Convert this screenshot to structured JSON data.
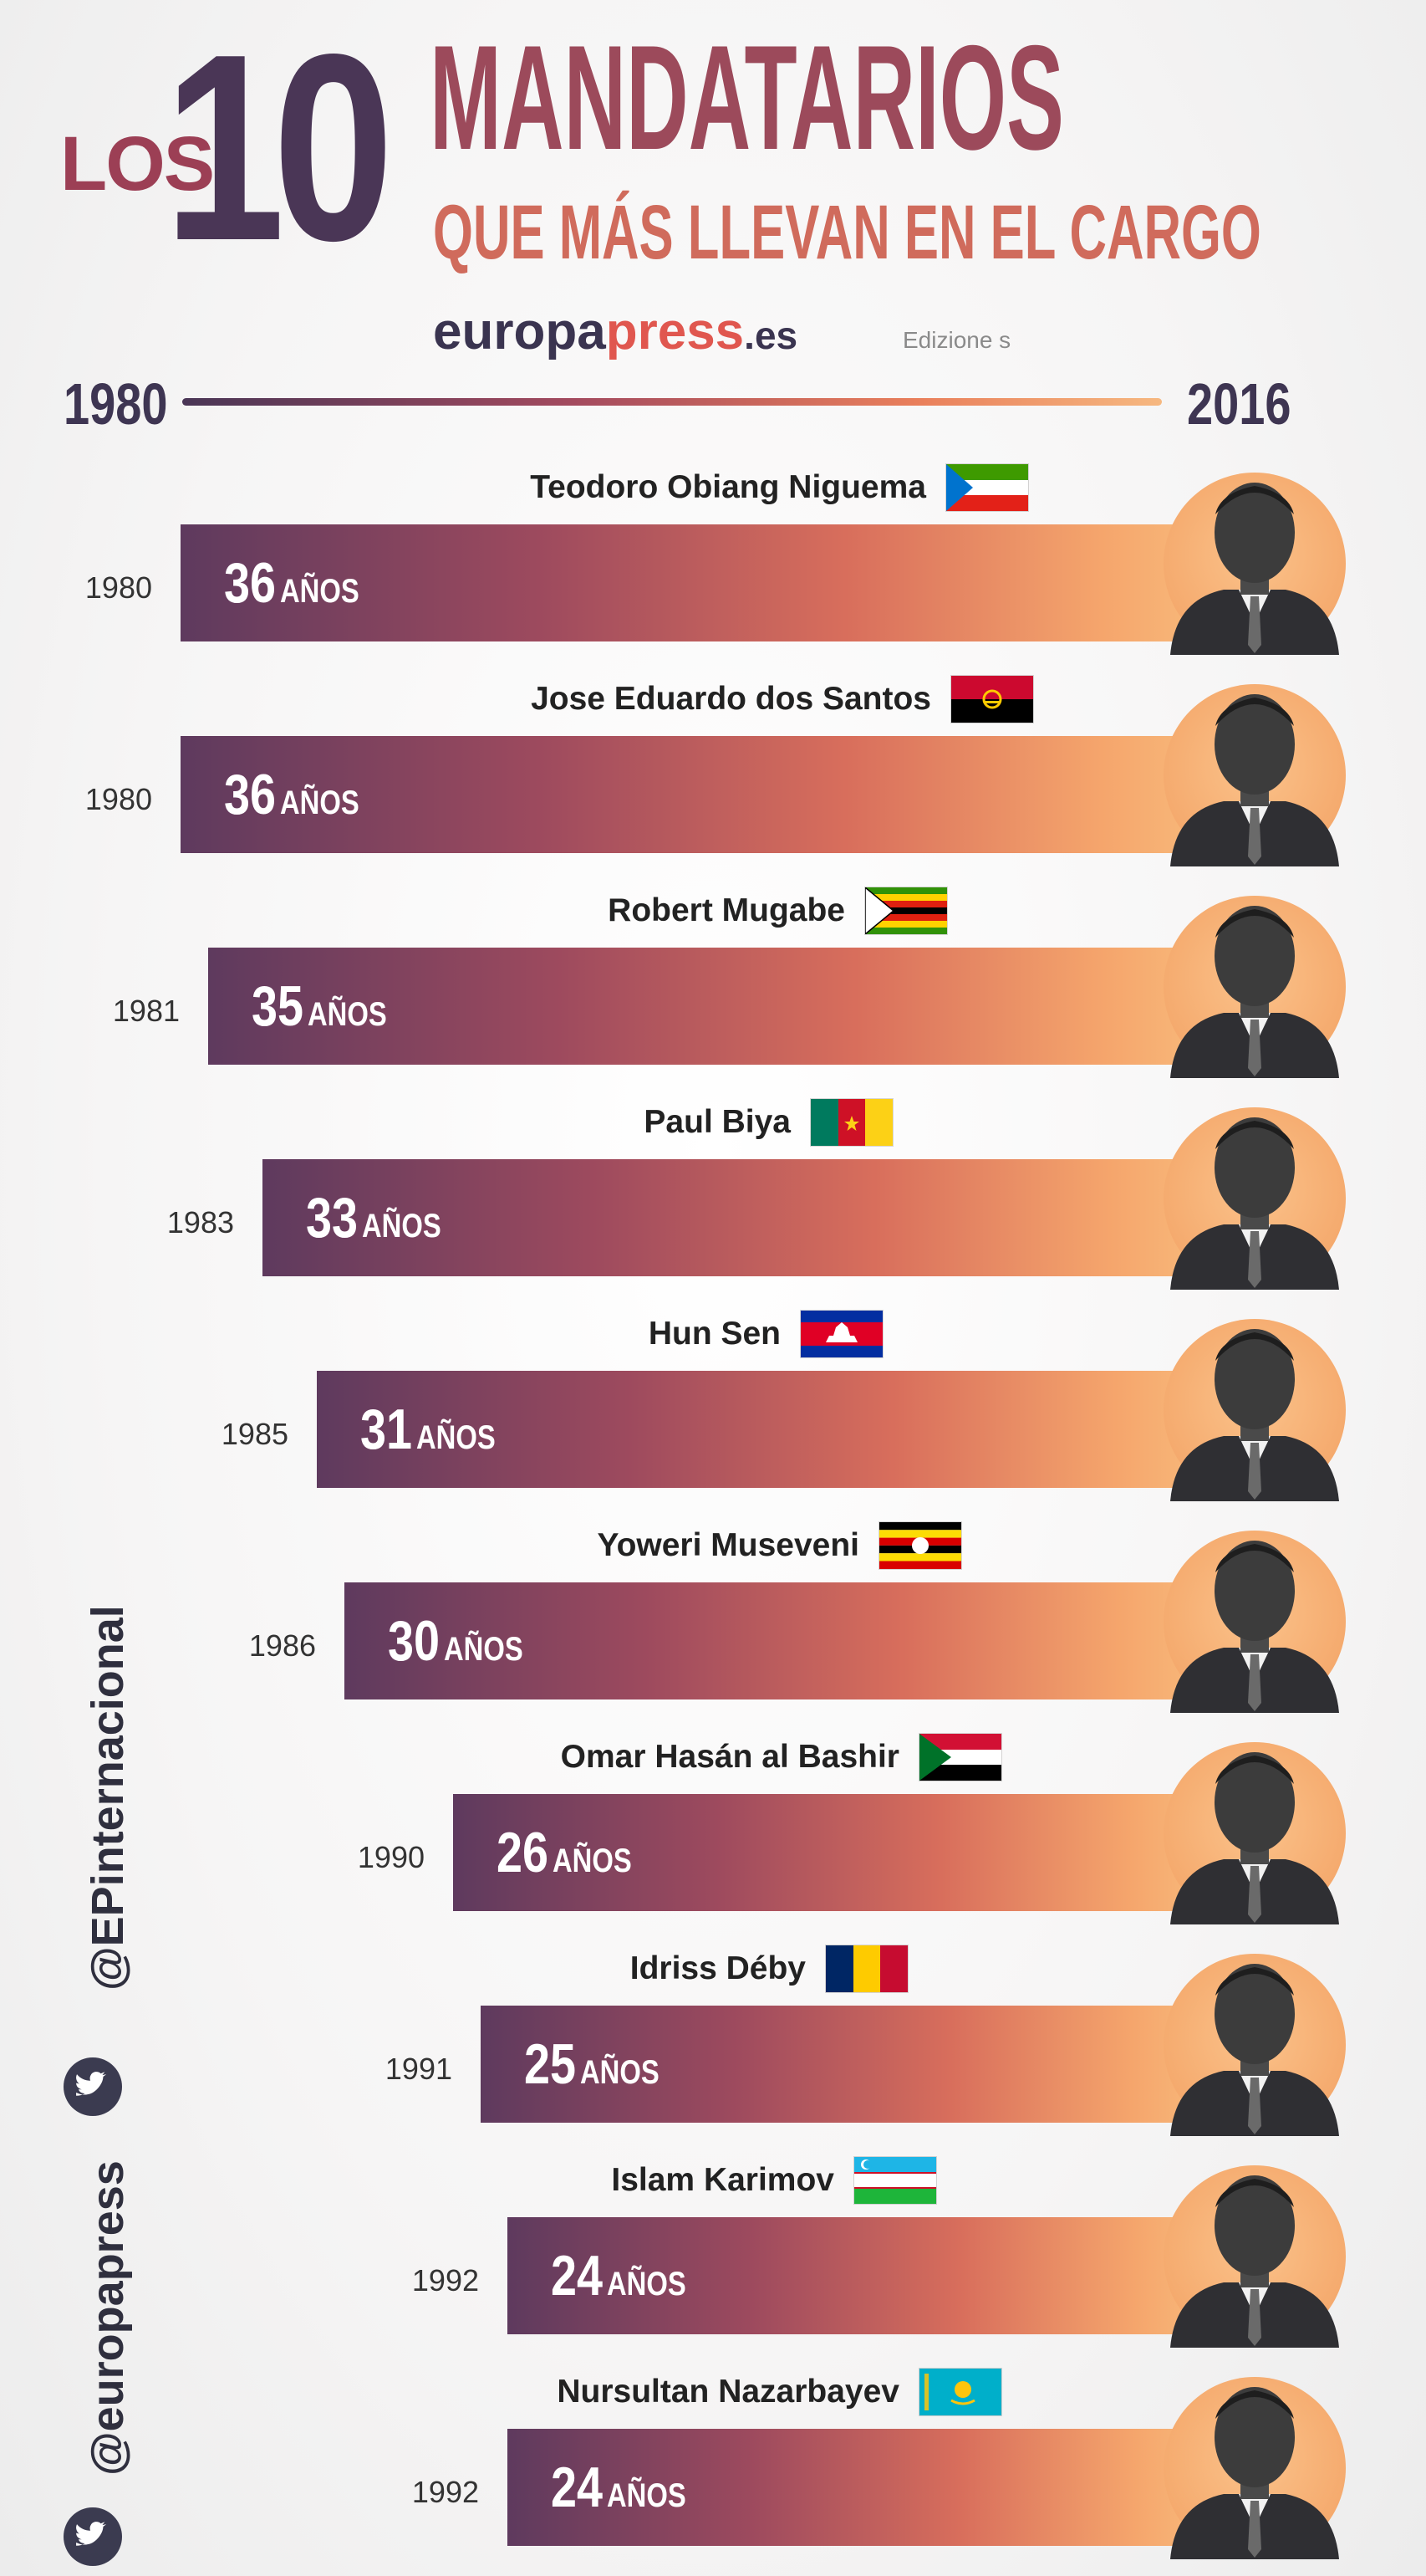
{
  "header": {
    "title_los": "LOS",
    "title_number": "10",
    "title_main": "MANDATARIOS",
    "title_sub": "QUE MÁS LLEVAN EN EL CARGO",
    "brand_part1": "europa",
    "brand_part2": "press",
    "brand_part3": ".es",
    "brand_editions": "Edizione s"
  },
  "timeline": {
    "start_label": "1980",
    "end_label": "2016"
  },
  "social": {
    "handle_international": "@EPinternacional",
    "handle_main": "@europapress"
  },
  "colors": {
    "bar_dark": "#5e3a5e",
    "bar_mid": "#d86e5c",
    "bar_light": "#f8b97a",
    "title_dark": "#4a3656",
    "title_red": "#9c4a5b"
  },
  "chart_data": {
    "type": "bar",
    "orientation": "horizontal",
    "x_range": [
      1980,
      2016
    ],
    "unit_label": "AÑOS",
    "items": [
      {
        "name": "Teodoro Obiang Niguema",
        "flag": "equatorial-guinea",
        "start_year": "1980",
        "years": 36
      },
      {
        "name": "Jose Eduardo dos Santos",
        "flag": "angola",
        "start_year": "1980",
        "years": 36
      },
      {
        "name": "Robert Mugabe",
        "flag": "zimbabwe",
        "start_year": "1981",
        "years": 35
      },
      {
        "name": "Paul Biya",
        "flag": "cameroon",
        "start_year": "1983",
        "years": 33
      },
      {
        "name": "Hun Sen",
        "flag": "cambodia",
        "start_year": "1985",
        "years": 31
      },
      {
        "name": "Yoweri Museveni",
        "flag": "uganda",
        "start_year": "1986",
        "years": 30
      },
      {
        "name": "Omar Hasán al Bashir",
        "flag": "sudan",
        "start_year": "1990",
        "years": 26
      },
      {
        "name": "Idriss Déby",
        "flag": "chad",
        "start_year": "1991",
        "years": 25
      },
      {
        "name": "Islam Karimov",
        "flag": "uzbekistan",
        "start_year": "1992",
        "years": 24
      },
      {
        "name": "Nursultan Nazarbayev",
        "flag": "kazakhstan",
        "start_year": "1992",
        "years": 24
      }
    ]
  }
}
